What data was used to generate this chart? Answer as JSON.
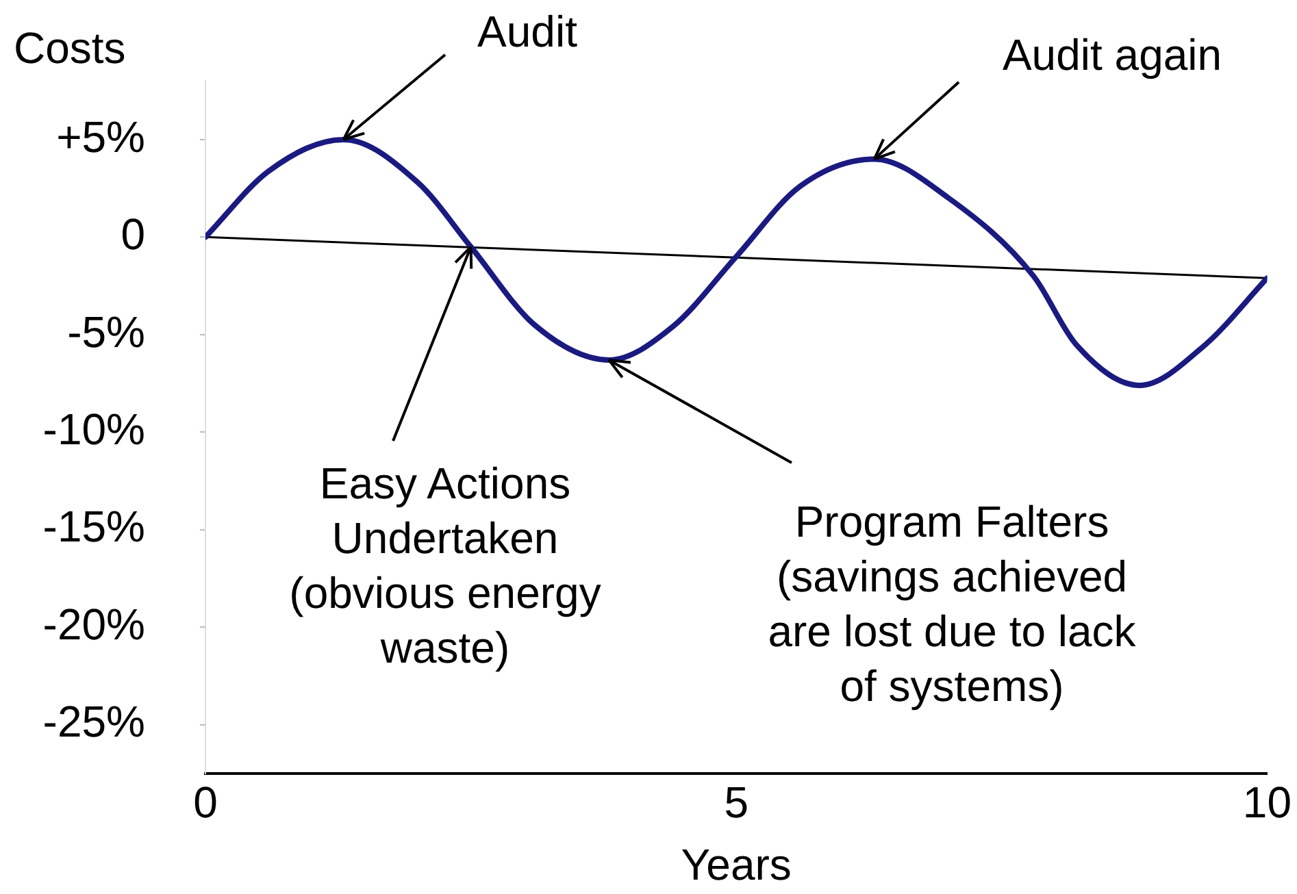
{
  "chart_data": {
    "type": "line",
    "xlabel": "Years",
    "ylabel": "Costs",
    "xlim": [
      0,
      10
    ],
    "xticks": [
      0,
      5,
      10
    ],
    "ylim": [
      -27.5,
      8
    ],
    "yticks": [
      {
        "value": 5,
        "label": "+5%"
      },
      {
        "value": 0,
        "label": "0"
      },
      {
        "value": -5,
        "label": "-5%"
      },
      {
        "value": -10,
        "label": "-10%"
      },
      {
        "value": -15,
        "label": "-15%"
      },
      {
        "value": -20,
        "label": "-20%"
      },
      {
        "value": -25,
        "label": "-25%"
      }
    ],
    "series": [
      {
        "color": "#1a1a80",
        "x": [
          0,
          0.6,
          1.3,
          2.0,
          2.5,
          3.1,
          3.8,
          4.4,
          5.0,
          5.6,
          6.3,
          7.0,
          7.8,
          8.2,
          8.8,
          9.4,
          10
        ],
        "values": [
          0,
          3.4,
          5.0,
          2.8,
          -0.5,
          -4.5,
          -6.3,
          -4.6,
          -1.0,
          2.6,
          4.0,
          2.0,
          -2.0,
          -5.5,
          -7.6,
          -5.6,
          -2.1
        ]
      },
      {
        "color": "#000000",
        "x": [
          0,
          10
        ],
        "values": [
          0,
          -2.1
        ]
      }
    ],
    "annotations": [
      {
        "text": "Audit",
        "x": 1.3,
        "y": 5.0
      },
      {
        "text": "Audit again",
        "x": 6.3,
        "y": 4.0
      },
      {
        "text": "Easy Actions\nUndertaken\n(obvious energy\nwaste)",
        "x": 2.5,
        "y": -0.5
      },
      {
        "text": "Program Falters\n(savings achieved\nare lost due to lack\nof systems)",
        "x": 3.8,
        "y": -6.3
      }
    ],
    "grid": false,
    "legend": false,
    "marker": "none",
    "line_style": "solid"
  }
}
